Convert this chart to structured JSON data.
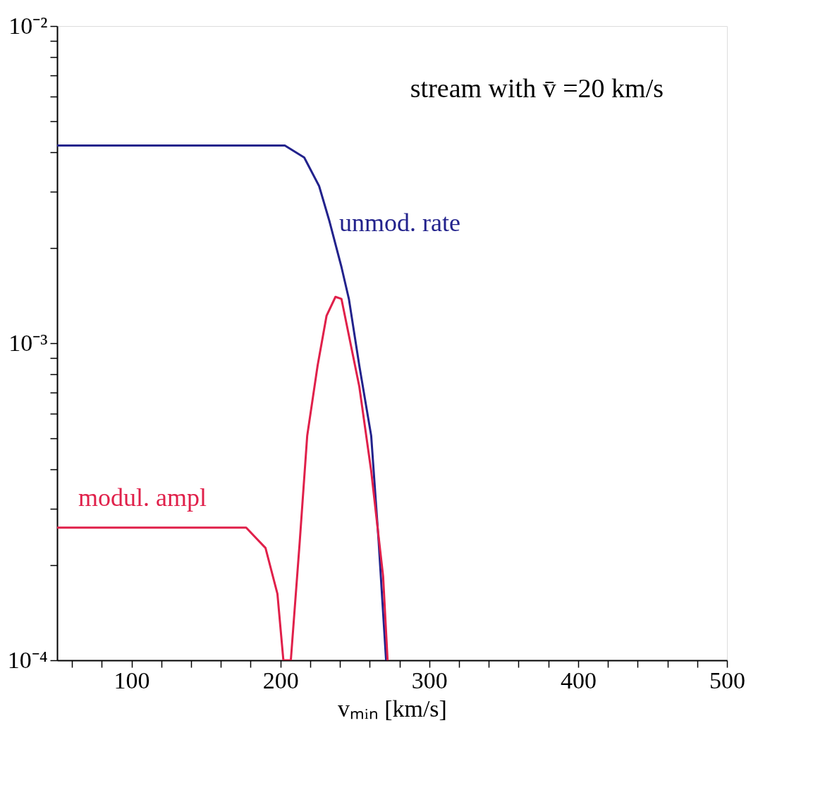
{
  "chart_data": {
    "type": "line",
    "xlabel": "vₘᵢₙ [km/s]",
    "annotations": [
      "stream with v̄ =20 km/s"
    ],
    "log": "y",
    "grid": false,
    "marker": "none",
    "line_style": "solid",
    "xlim": [
      50,
      500
    ],
    "ylim": [
      0.0001,
      0.01
    ],
    "xticks": [
      {
        "value": 60,
        "label": null
      },
      {
        "value": 80,
        "label": null
      },
      100,
      {
        "value": 120,
        "label": null
      },
      {
        "value": 140,
        "label": null
      },
      {
        "value": 160,
        "label": null
      },
      {
        "value": 180,
        "label": null
      },
      200,
      {
        "value": 220,
        "label": null
      },
      {
        "value": 240,
        "label": null
      },
      {
        "value": 260,
        "label": null
      },
      {
        "value": 280,
        "label": null
      },
      300,
      {
        "value": 320,
        "label": null
      },
      {
        "value": 340,
        "label": null
      },
      {
        "value": 360,
        "label": null
      },
      {
        "value": 380,
        "label": null
      },
      400,
      {
        "value": 420,
        "label": null
      },
      {
        "value": 440,
        "label": null
      },
      {
        "value": 460,
        "label": null
      },
      {
        "value": 480,
        "label": null
      },
      500
    ],
    "yticks": [
      {
        "value": 0.0001,
        "label": "10⁻⁴"
      },
      {
        "value": 0.0002,
        "label": null
      },
      {
        "value": 0.0003,
        "label": null
      },
      {
        "value": 0.0004,
        "label": null
      },
      {
        "value": 0.0005,
        "label": null
      },
      {
        "value": 0.0006,
        "label": null
      },
      {
        "value": 0.0007,
        "label": null
      },
      {
        "value": 0.0008,
        "label": null
      },
      {
        "value": 0.0009,
        "label": null
      },
      {
        "value": 0.001,
        "label": "10⁻³"
      },
      {
        "value": 0.002,
        "label": null
      },
      {
        "value": 0.003,
        "label": null
      },
      {
        "value": 0.004,
        "label": null
      },
      {
        "value": 0.005,
        "label": null
      },
      {
        "value": 0.006,
        "label": null
      },
      {
        "value": 0.007,
        "label": null
      },
      {
        "value": 0.008,
        "label": null
      },
      {
        "value": 0.009,
        "label": null
      },
      {
        "value": 0.01,
        "label": "10⁻²"
      }
    ],
    "series": [
      {
        "name": "unmod. rate",
        "color": "#22228c",
        "x": [
          50,
          100,
          150,
          195,
          203,
          216,
          226,
          233,
          241,
          246,
          253,
          261,
          266,
          271
        ],
        "values": [
          0.0042,
          0.0042,
          0.0042,
          0.0042,
          0.0042,
          0.00385,
          0.00313,
          0.00242,
          0.00174,
          0.00138,
          0.00085,
          0.00051,
          0.000237,
          0.0001
        ]
      },
      {
        "name": "modul. ampl",
        "color": "#e0204a",
        "x": [
          50,
          100,
          150,
          177,
          190,
          198,
          202,
          207,
          213,
          218,
          225,
          231,
          237,
          241,
          253,
          261,
          269,
          272
        ],
        "values": [
          0.000262,
          0.000262,
          0.000262,
          0.000262,
          0.000226,
          0.000162,
          0.0001,
          0.0001,
          0.000237,
          0.00051,
          0.00085,
          0.00122,
          0.0014,
          0.00138,
          0.00073,
          0.000395,
          0.000184,
          0.0001
        ]
      }
    ]
  }
}
